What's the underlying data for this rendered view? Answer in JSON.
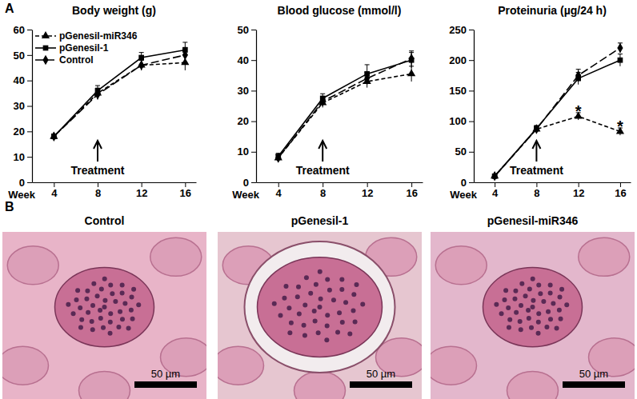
{
  "figure": {
    "panel_labels": [
      "A",
      "B"
    ],
    "images": [
      {
        "title": "Control",
        "scale_bar": "50 µm"
      },
      {
        "title": "pGenesil-1",
        "scale_bar": "50 µm"
      },
      {
        "title": "pGenesil-miR346",
        "scale_bar": "50 µm"
      }
    ]
  },
  "chart_data": [
    {
      "type": "line",
      "title": "Body weight (g)",
      "x_label": "Week",
      "x": [
        4,
        8,
        12,
        16
      ],
      "xlim": [
        2,
        17
      ],
      "xticks": [
        4,
        8,
        12,
        16
      ],
      "ylim": [
        0,
        60
      ],
      "yticks": [
        0,
        10,
        20,
        30,
        40,
        50,
        60
      ],
      "legend": "top-left",
      "annotations": [
        {
          "text": "Treatment",
          "x": 8
        }
      ],
      "series": [
        {
          "name": "pGenesil-miR346",
          "color": "#000000",
          "marker": "triangle",
          "line_style": "dashed",
          "values": [
            18,
            35,
            46,
            47
          ],
          "errors": [
            1,
            2,
            2,
            3
          ]
        },
        {
          "name": "pGenesil-1",
          "color": "#000000",
          "marker": "square",
          "line_style": "solid",
          "values": [
            18,
            36,
            49,
            52
          ],
          "errors": [
            1,
            2,
            2,
            3
          ]
        },
        {
          "name": "Control",
          "color": "#000000",
          "marker": "diamond",
          "line_style": "longdash",
          "values": [
            18,
            34.5,
            46,
            50
          ],
          "errors": [
            1,
            2,
            2,
            3
          ]
        }
      ]
    },
    {
      "type": "line",
      "title": "Blood glucose (mmol/l)",
      "x_label": "Week",
      "x": [
        4,
        8,
        12,
        16
      ],
      "xlim": [
        2,
        17
      ],
      "xticks": [
        4,
        8,
        12,
        16
      ],
      "ylim": [
        0,
        50
      ],
      "yticks": [
        0,
        10,
        20,
        30,
        40,
        50
      ],
      "annotations": [
        {
          "text": "Treatment",
          "x": 8
        }
      ],
      "series": [
        {
          "color": "#000000",
          "marker": "triangle",
          "line_style": "dashed",
          "values": [
            8,
            26,
            33,
            35.5
          ],
          "errors": [
            1,
            1.5,
            2,
            2.5
          ]
        },
        {
          "color": "#000000",
          "marker": "square",
          "line_style": "solid",
          "values": [
            8.5,
            27.5,
            35.5,
            40
          ],
          "errors": [
            1,
            1.5,
            3,
            2.5
          ]
        },
        {
          "color": "#000000",
          "marker": "diamond",
          "line_style": "longdash",
          "values": [
            8,
            26.5,
            34,
            40.5
          ],
          "errors": [
            1,
            1.5,
            2,
            2.5
          ]
        }
      ]
    },
    {
      "type": "line",
      "title": "Proteinuria (µg/24 h)",
      "x_label": "Week",
      "x": [
        4,
        8,
        12,
        16
      ],
      "xlim": [
        2,
        17
      ],
      "xticks": [
        4,
        8,
        12,
        16
      ],
      "ylim": [
        0,
        250
      ],
      "yticks": [
        0,
        50,
        100,
        150,
        200,
        250
      ],
      "annotations": [
        {
          "text": "Treatment",
          "x": 8
        },
        {
          "text": "*",
          "x": 12,
          "y": 118
        },
        {
          "text": "*",
          "x": 16,
          "y": 93
        }
      ],
      "series": [
        {
          "color": "#000000",
          "marker": "triangle",
          "line_style": "dashed",
          "values": [
            10,
            87,
            108,
            83
          ],
          "errors": [
            3,
            5,
            6,
            6
          ]
        },
        {
          "color": "#000000",
          "marker": "square",
          "line_style": "solid",
          "values": [
            10,
            88,
            170,
            200
          ],
          "errors": [
            3,
            5,
            10,
            10
          ]
        },
        {
          "color": "#000000",
          "marker": "diamond",
          "line_style": "longdash",
          "values": [
            10,
            87,
            175,
            220
          ],
          "errors": [
            3,
            5,
            10,
            8
          ]
        }
      ]
    }
  ]
}
